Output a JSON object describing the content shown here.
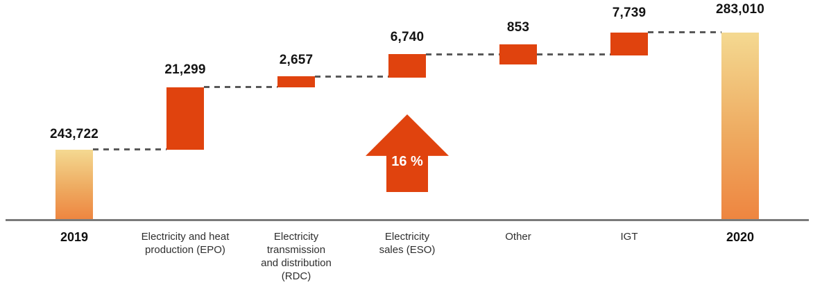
{
  "chart_data": {
    "type": "bar",
    "subtype": "waterfall",
    "title": "",
    "categories": [
      "2019",
      "Electricity and heat production (EPO)",
      "Electricity transmission and distribution (RDC)",
      "Electricity sales (ESO)",
      "Other",
      "IGT",
      "2020"
    ],
    "categories_wrapped": [
      "2019",
      "Electricity and heat\nproduction (EPO)",
      "Electricity\ntransmission\nand distribution\n(RDC)",
      "Electricity\nsales (ESO)",
      "Other",
      "IGT",
      "2020"
    ],
    "values": [
      243722,
      21299,
      2657,
      6740,
      853,
      7739,
      283010
    ],
    "value_labels": [
      "243,722",
      "21,299",
      "2,657",
      "6,740",
      "853",
      "7,739",
      "283,010"
    ],
    "bar_kinds": [
      "total",
      "increase",
      "increase",
      "increase",
      "increase",
      "increase",
      "total"
    ],
    "annotation": {
      "growth_arrow_label": "16 %"
    },
    "layout": {
      "legend": "none",
      "gridlines": false,
      "y_axis_ticks": false,
      "baseline_axis_visible": true,
      "connector_style": "dashed"
    },
    "colors": {
      "increase_bar": "#e0430e",
      "total_bar_gradient_top": "#f4d991",
      "total_bar_gradient_bottom": "#ee8540",
      "connector": "#595959",
      "baseline_axis": "#7a7a7a",
      "value_text": "#141414",
      "category_text": "#2e2e2e",
      "arrow": "#e0430e",
      "arrow_text": "#ffffff"
    }
  }
}
